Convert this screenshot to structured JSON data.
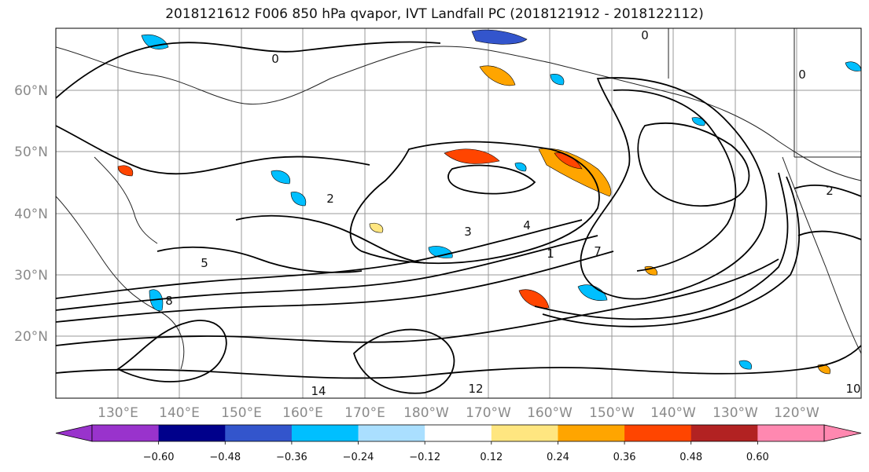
{
  "title": "2018121612 F006 850 hPa qvapor, IVT Landfall PC (2018121912 - 2018122112)",
  "map": {
    "lat_labels": [
      "60°N",
      "50°N",
      "40°N",
      "30°N",
      "20°N"
    ],
    "lon_labels": [
      "130°E",
      "140°E",
      "150°E",
      "160°E",
      "170°E",
      "180°W",
      "170°W",
      "160°W",
      "150°W",
      "140°W",
      "130°W",
      "120°W"
    ],
    "contour_labels": [
      "0",
      "0",
      "1",
      "2",
      "3",
      "4",
      "5",
      "7",
      "8",
      "12",
      "14",
      "10",
      "2",
      "0"
    ]
  },
  "colorbar": {
    "colors": [
      "#9933cc",
      "#00008b",
      "#3355cc",
      "#00bfff",
      "#aadfff",
      "#ffffff",
      "#ffe680",
      "#ffa500",
      "#ff4500",
      "#b22222",
      "#ff88b0"
    ],
    "tick_labels": [
      "−0.60",
      "−0.48",
      "−0.36",
      "−0.24",
      "−0.12",
      "0.12",
      "0.24",
      "0.36",
      "0.48",
      "0.60"
    ]
  },
  "colors": {
    "land_line": "#222222",
    "contour": "#000000",
    "grid": "#999999"
  }
}
